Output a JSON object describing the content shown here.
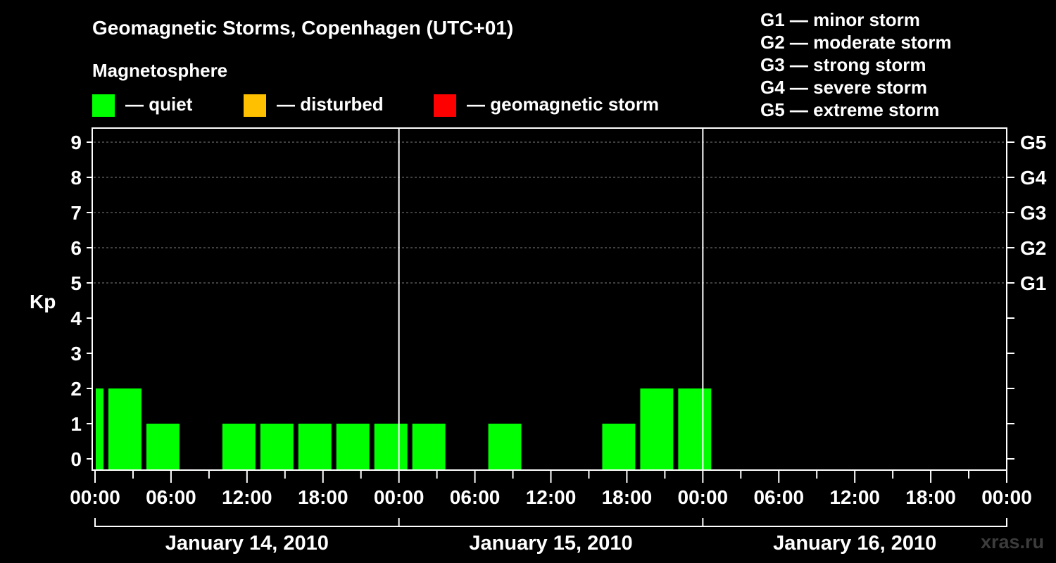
{
  "chart_data": {
    "type": "bar",
    "title": "Geomagnetic Storms, Copenhagen (UTC+01)",
    "subtitle": "Magnetosphere",
    "ylabel": "Kp",
    "ylim": [
      0,
      9
    ],
    "x_hours_range": [
      0,
      72
    ],
    "legend_colors": [
      {
        "label": "— quiet",
        "color": "#00ff00"
      },
      {
        "label": "— disturbed",
        "color": "#ffc000"
      },
      {
        "label": "— geomagnetic storm",
        "color": "#ff0000"
      }
    ],
    "storm_scale": [
      "G1 — minor storm",
      "G2 — moderate storm",
      "G3 — strong storm",
      "G4 — severe storm",
      "G5 — extreme storm"
    ],
    "y_ticks": [
      "0",
      "1",
      "2",
      "3",
      "4",
      "5",
      "6",
      "7",
      "8",
      "9"
    ],
    "right_ticks": [
      {
        "kp": 5,
        "label": "G1"
      },
      {
        "kp": 6,
        "label": "G2"
      },
      {
        "kp": 7,
        "label": "G3"
      },
      {
        "kp": 8,
        "label": "G4"
      },
      {
        "kp": 9,
        "label": "G5"
      }
    ],
    "x_tick_labels": [
      "00:00",
      "06:00",
      "12:00",
      "18:00",
      "00:00",
      "06:00",
      "12:00",
      "18:00",
      "00:00",
      "06:00",
      "12:00",
      "18:00",
      "00:00"
    ],
    "dates": [
      "January 14, 2010",
      "January 15, 2010",
      "January 16, 2010"
    ],
    "bars": [
      {
        "start_hour": 0,
        "end_hour": 1,
        "kp": 2,
        "level": "quiet"
      },
      {
        "start_hour": 1,
        "end_hour": 4,
        "kp": 2,
        "level": "quiet"
      },
      {
        "start_hour": 4,
        "end_hour": 7,
        "kp": 1,
        "level": "quiet"
      },
      {
        "start_hour": 7,
        "end_hour": 10,
        "kp": 0,
        "level": "quiet"
      },
      {
        "start_hour": 10,
        "end_hour": 13,
        "kp": 1,
        "level": "quiet"
      },
      {
        "start_hour": 13,
        "end_hour": 16,
        "kp": 1,
        "level": "quiet"
      },
      {
        "start_hour": 16,
        "end_hour": 19,
        "kp": 1,
        "level": "quiet"
      },
      {
        "start_hour": 19,
        "end_hour": 22,
        "kp": 1,
        "level": "quiet"
      },
      {
        "start_hour": 22,
        "end_hour": 25,
        "kp": 1,
        "level": "quiet"
      },
      {
        "start_hour": 25,
        "end_hour": 28,
        "kp": 1,
        "level": "quiet"
      },
      {
        "start_hour": 28,
        "end_hour": 31,
        "kp": 0,
        "level": "quiet"
      },
      {
        "start_hour": 31,
        "end_hour": 34,
        "kp": 1,
        "level": "quiet"
      },
      {
        "start_hour": 34,
        "end_hour": 37,
        "kp": 0,
        "level": "quiet"
      },
      {
        "start_hour": 37,
        "end_hour": 40,
        "kp": 0,
        "level": "quiet"
      },
      {
        "start_hour": 40,
        "end_hour": 43,
        "kp": 1,
        "level": "quiet"
      },
      {
        "start_hour": 43,
        "end_hour": 46,
        "kp": 2,
        "level": "quiet"
      },
      {
        "start_hour": 46,
        "end_hour": 49,
        "kp": 2,
        "level": "quiet"
      }
    ],
    "watermark": "xras.ru"
  }
}
